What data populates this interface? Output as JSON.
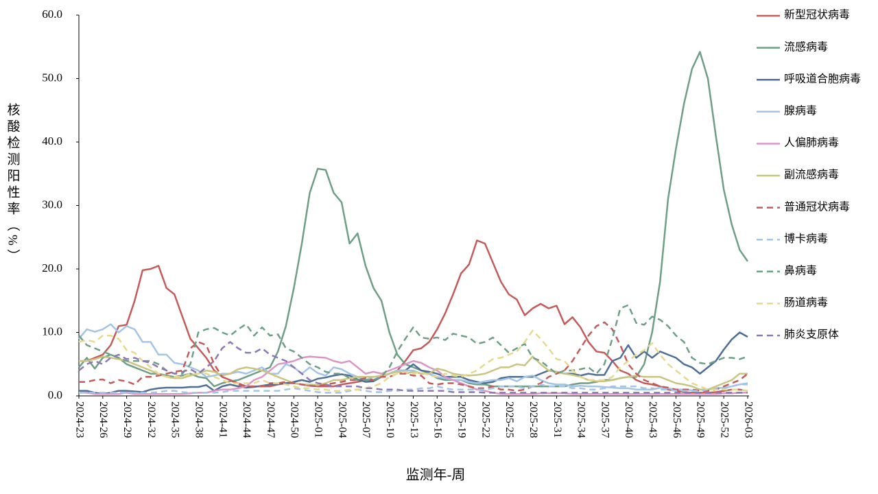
{
  "chart_data": {
    "type": "line",
    "x_label": "监测年-周",
    "y_label": "核酸检测阳性率（%）",
    "categories": [
      "2024-23",
      null,
      null,
      "2024-26",
      null,
      null,
      "2024-29",
      null,
      null,
      "2024-32",
      null,
      null,
      "2024-35",
      null,
      null,
      "2024-38",
      null,
      null,
      "2024-41",
      null,
      null,
      "2024-44",
      null,
      null,
      "2024-47",
      null,
      null,
      "2024-50",
      null,
      null,
      "2025-01",
      null,
      null,
      "2025-04",
      null,
      null,
      "2025-07",
      null,
      null,
      "2025-10",
      null,
      null,
      "2025-13",
      null,
      null,
      "2025-16",
      null,
      null,
      "2025-19",
      null,
      null,
      "2025-22",
      null,
      null,
      "2025-25",
      null,
      null,
      "2025-28",
      null,
      null,
      "2025-31",
      null,
      null,
      "2025-34",
      null,
      null,
      "2025-37",
      null,
      null,
      "2025-40",
      null,
      null,
      "2025-43",
      null,
      null,
      "2025-46",
      null,
      null,
      "2025-49",
      null,
      null,
      "2025-52",
      null,
      null,
      "2026-03"
    ],
    "ylim": [
      0,
      60
    ],
    "yticks": [
      {
        "value": 0,
        "label": "0.0"
      },
      {
        "value": 10,
        "label": "10.0"
      },
      {
        "value": 20,
        "label": "20.0"
      },
      {
        "value": 30,
        "label": "30.0"
      },
      {
        "value": 40,
        "label": "40.0"
      },
      {
        "value": 50,
        "label": "50.0"
      },
      {
        "value": 60,
        "label": "60.0"
      }
    ],
    "legend": "right",
    "series": [
      {
        "name": "新型冠状病毒",
        "color": "#c55a5a",
        "dashed": false,
        "values": [
          5.5,
          5.5,
          6,
          6.5,
          8,
          11,
          11.2,
          15,
          19.8,
          20,
          20.5,
          17,
          16,
          12.5,
          9,
          7.5,
          6,
          4,
          3,
          2.5,
          2,
          1.5,
          1.5,
          1.5,
          1.5,
          1.8,
          2,
          2,
          1.8,
          1.6,
          1.5,
          1.5,
          1.5,
          1.8,
          2,
          2.2,
          2.5,
          2.5,
          3,
          3.5,
          4,
          5.5,
          7.2,
          7.5,
          8.5,
          10.5,
          13,
          16,
          19.3,
          20.7,
          24.5,
          24,
          21,
          18,
          16,
          15.2,
          12.7,
          13.8,
          14.5,
          13.8,
          14.2,
          11.3,
          12.4,
          10.8,
          8.5,
          7,
          6.8,
          5.5,
          4,
          3.5,
          2.5,
          2,
          1.8,
          1.5,
          1,
          0.8,
          0.6,
          0.5,
          0.5,
          0.5,
          0.6,
          0.8,
          1,
          1,
          0.8
        ]
      },
      {
        "name": "流感病毒",
        "color": "#6e9e85",
        "dashed": false,
        "values": [
          4.5,
          6,
          4.3,
          6,
          6.5,
          6,
          5,
          4.5,
          4,
          3.5,
          3.5,
          3.2,
          3,
          3.2,
          3.5,
          3,
          2.8,
          1.5,
          2,
          2.3,
          2.5,
          3,
          3.5,
          4,
          4.5,
          7,
          11,
          17,
          24,
          32,
          35.8,
          35.6,
          32,
          30.5,
          24,
          25.6,
          20.5,
          17,
          15,
          10,
          6.5,
          5,
          4.5,
          4,
          3.5,
          2.8,
          2.5,
          2.5,
          2.5,
          2,
          1.8,
          1.8,
          1.5,
          1.5,
          1.5,
          1.5,
          1.5,
          1.5,
          1.5,
          1.5,
          1.5,
          1.5,
          1.8,
          2,
          2,
          2.2,
          2.5,
          2.5,
          2.8,
          3,
          3,
          5,
          10,
          18,
          31,
          39,
          46,
          51.5,
          54.2,
          50,
          41,
          32.5,
          27,
          23,
          21.2
        ]
      },
      {
        "name": "呼吸道合胞病毒",
        "color": "#4e6e95",
        "dashed": false,
        "values": [
          0.8,
          0.8,
          0.5,
          0.3,
          0.5,
          0.8,
          0.8,
          0.7,
          0.6,
          1,
          1.2,
          1.3,
          1.3,
          1.3,
          1.4,
          1.4,
          1.7,
          0.8,
          1.5,
          1.8,
          1.5,
          1.3,
          1.4,
          1.6,
          1.8,
          1.9,
          2,
          2.2,
          2.5,
          2.2,
          2.7,
          2.9,
          3.2,
          3.4,
          3.2,
          2.6,
          2.2,
          2.3,
          3,
          3.5,
          4,
          4,
          5,
          4,
          3.8,
          3.5,
          3,
          3,
          3,
          2.5,
          2.2,
          2,
          2.2,
          2.8,
          3,
          3,
          3,
          3,
          3.5,
          4,
          3.8,
          3.5,
          3.5,
          3.2,
          3.5,
          3.3,
          3.3,
          5.5,
          6,
          8,
          6,
          7,
          6,
          7,
          6.5,
          6,
          5,
          4.5,
          3.5,
          4.5,
          5.5,
          7.3,
          8.9,
          10,
          9.3
        ]
      },
      {
        "name": "腺病毒",
        "color": "#a3c4e4",
        "dashed": false,
        "values": [
          9,
          10.5,
          10.1,
          10.5,
          11.3,
          10,
          11,
          10.5,
          8.5,
          8.5,
          6.5,
          6.5,
          5.2,
          5,
          4.5,
          4,
          3,
          3.2,
          3.5,
          3.5,
          3.8,
          3.5,
          4,
          4.5,
          3.5,
          3.5,
          5,
          4.5,
          3.5,
          4.5,
          3.6,
          3.2,
          4.5,
          4.2,
          3.5,
          3,
          2.5,
          3,
          3,
          3.5,
          4,
          4,
          4,
          3.5,
          3.5,
          3,
          2.8,
          2.5,
          2.5,
          2.2,
          2,
          2.3,
          2.5,
          2.5,
          2.8,
          2.3,
          3,
          3.2,
          2.5,
          2,
          1.8,
          1.8,
          1.5,
          1.6,
          1.5,
          1.5,
          1.4,
          1.3,
          1.2,
          1.2,
          1,
          1,
          1,
          1.3,
          1.2,
          1,
          1,
          0.9,
          1,
          1,
          1.2,
          1.3,
          1.5,
          1.8,
          2
        ]
      },
      {
        "name": "人偏肺病毒",
        "color": "#dc96c6",
        "dashed": false,
        "values": [
          0.5,
          0.5,
          0.3,
          0.3,
          0.3,
          0.3,
          0.5,
          0.3,
          0.3,
          0.3,
          0.3,
          0.3,
          0.3,
          0.3,
          0.4,
          0.5,
          0.5,
          0.8,
          1,
          1,
          1.2,
          1.5,
          2.5,
          3,
          4,
          5,
          5.2,
          5.5,
          6,
          6.2,
          6.1,
          6,
          5.5,
          5.2,
          5.5,
          4.5,
          3.5,
          3.8,
          3.5,
          4,
          4.5,
          5,
          5.5,
          5.2,
          4.5,
          4,
          3,
          2.5,
          2,
          1.5,
          1,
          0.8,
          0.5,
          0.3,
          0.3,
          0.3,
          0.3,
          0.3,
          0.4,
          0.4,
          0.4,
          0.4,
          0.3,
          0.3,
          0.3,
          0.3,
          0.3,
          0.3,
          0.3,
          0.3,
          0.3,
          0.3,
          0.3,
          0.3,
          0.3,
          0.3,
          0.3,
          0.3,
          0.3,
          0.3,
          0.3,
          0.4,
          0.4,
          0.5,
          0.5
        ]
      },
      {
        "name": "副流感病毒",
        "color": "#c9c47f",
        "dashed": false,
        "values": [
          5.5,
          5.5,
          5.8,
          6.2,
          6,
          5.8,
          5.5,
          5,
          4.5,
          4,
          3.5,
          3,
          2.8,
          2.8,
          3.2,
          3.5,
          4,
          3.8,
          3.2,
          3.5,
          4.2,
          4.5,
          4.3,
          4,
          3.5,
          3,
          2.5,
          2,
          1.8,
          1.8,
          1.7,
          2,
          2.5,
          2.5,
          2.8,
          3,
          3,
          3,
          3.2,
          3.5,
          3.8,
          3.5,
          3.8,
          3.5,
          3.5,
          4.3,
          4,
          3.5,
          3.3,
          3.2,
          3.3,
          3.5,
          4,
          4.5,
          4.5,
          5,
          4.8,
          6.2,
          5,
          4,
          3.8,
          3.5,
          3.3,
          3,
          2.5,
          2.3,
          2.3,
          2.5,
          2.8,
          3,
          3.2,
          3,
          3,
          3,
          2.5,
          2,
          1.8,
          1.5,
          1,
          1,
          1.5,
          2,
          2.5,
          3.5,
          3.5
        ]
      },
      {
        "name": "普通冠状病毒",
        "color": "#c55a5a",
        "dashed": true,
        "values": [
          2.2,
          2.2,
          2.5,
          2.6,
          2,
          2.5,
          2.3,
          1.8,
          3,
          3,
          3.2,
          3.5,
          3.8,
          4,
          7.5,
          8.5,
          8,
          5,
          3,
          2.5,
          1.8,
          1.5,
          1.5,
          1.5,
          2,
          2,
          2.2,
          2,
          1.8,
          1.6,
          1.5,
          1.8,
          2,
          2.2,
          2.5,
          2.5,
          2.8,
          2.5,
          3,
          3,
          3.5,
          3.5,
          3.2,
          3.2,
          2,
          1.8,
          2,
          2,
          1.8,
          1.5,
          1.2,
          1.2,
          1.5,
          1,
          1,
          0.8,
          1,
          1.5,
          2,
          3,
          3.5,
          4,
          5.5,
          7.5,
          9.5,
          11,
          11.6,
          10.5,
          8,
          5,
          3.5,
          2.5,
          2,
          1.5,
          1.3,
          1,
          1,
          1,
          0.8,
          0.8,
          1,
          1.5,
          2,
          2.5,
          3.5
        ]
      },
      {
        "name": "博卡病毒",
        "color": "#a3c4e4",
        "dashed": true,
        "values": [
          0.5,
          0.5,
          0.5,
          0.5,
          0.5,
          0.5,
          0.5,
          0.5,
          0.5,
          0.5,
          0.6,
          0.8,
          0.8,
          0.6,
          0.5,
          0.5,
          0.5,
          0.5,
          0.6,
          0.8,
          0.8,
          0.8,
          0.8,
          0.8,
          0.8,
          0.8,
          1,
          1.2,
          1,
          0.8,
          0.6,
          0.5,
          0.5,
          0.5,
          0.8,
          1,
          0.8,
          0.6,
          0.6,
          0.8,
          0.8,
          1,
          1,
          1.2,
          1.2,
          1.5,
          1.2,
          1,
          1,
          1,
          1,
          1,
          1.2,
          1.5,
          1.5,
          1.5,
          1.2,
          1.5,
          1.8,
          1.5,
          1.5,
          1.5,
          1.2,
          1.2,
          1,
          1,
          1.2,
          1.5,
          1.5,
          1.5,
          1.5,
          1.2,
          1.2,
          1,
          1,
          0.8,
          0.8,
          0.8,
          0.8,
          1,
          1,
          1.2,
          1.5,
          1.8,
          1.8
        ]
      },
      {
        "name": "鼻病毒",
        "color": "#6e9e85",
        "dashed": true,
        "values": [
          9.5,
          8,
          7.5,
          7,
          6.5,
          6,
          5.5,
          5.5,
          5.5,
          5.5,
          5,
          4,
          3.5,
          3.5,
          5,
          10,
          10.5,
          10.7,
          10,
          9.5,
          10.5,
          11.3,
          9.5,
          10.8,
          9.5,
          9.7,
          7.5,
          7,
          6,
          5,
          4.5,
          3.8,
          3.5,
          3.5,
          2.8,
          2.5,
          2.5,
          2.5,
          3,
          4.5,
          7,
          9,
          10.8,
          9.2,
          9,
          9.2,
          8.8,
          9.8,
          9.5,
          9.2,
          8.2,
          8.5,
          9.2,
          8,
          6.8,
          7.5,
          8.2,
          6,
          5.5,
          4.5,
          3.5,
          4,
          4,
          4.2,
          4.5,
          3.5,
          5,
          9,
          13.8,
          14.3,
          11.5,
          11.2,
          12.5,
          12,
          11,
          9.5,
          8.5,
          6,
          5.2,
          5,
          5.5,
          6,
          6,
          5.8,
          6.2
        ]
      },
      {
        "name": "肠道病毒",
        "color": "#e5d98e",
        "dashed": true,
        "values": [
          8.5,
          8.8,
          8.5,
          9.5,
          9.5,
          9,
          7.2,
          6.8,
          5.5,
          4.5,
          3.5,
          3,
          3,
          3,
          3.5,
          3.5,
          3.5,
          3,
          2.5,
          2,
          2,
          2,
          2,
          2.5,
          2,
          2,
          1.8,
          1.5,
          1.2,
          1.2,
          1,
          1,
          0.8,
          0.8,
          1,
          1,
          1.2,
          1.5,
          2,
          3,
          3.5,
          3.8,
          3.5,
          3.8,
          3.2,
          3,
          3.5,
          3.2,
          3,
          3.5,
          4,
          5,
          5.8,
          6,
          6.5,
          7,
          8.5,
          10.3,
          9,
          7.5,
          5.8,
          5.5,
          4,
          3,
          2.5,
          2.5,
          2.5,
          3,
          4.5,
          5.5,
          6.5,
          7.2,
          8.3,
          6.5,
          5,
          4,
          3,
          2,
          1.5,
          1,
          1,
          1,
          1,
          1,
          0.8
        ]
      },
      {
        "name": "肺炎支原体",
        "color": "#8b78b5",
        "dashed": true,
        "values": [
          4,
          5,
          5.5,
          5,
          6,
          6.5,
          5.8,
          6,
          5.5,
          5.2,
          4.5,
          4,
          3.5,
          3.8,
          4.2,
          3.5,
          4.5,
          5.5,
          7.5,
          8.5,
          7.5,
          6.8,
          6.8,
          7.5,
          6.5,
          6,
          5.5,
          4.5,
          3.5,
          2.5,
          2,
          1.8,
          1.5,
          1.5,
          1.5,
          1.5,
          1.2,
          1.2,
          1,
          1,
          1,
          0.8,
          0.8,
          0.8,
          0.8,
          0.8,
          0.8,
          0.6,
          0.6,
          0.6,
          0.6,
          0.5,
          0.5,
          0.5,
          0.5,
          0.5,
          0.5,
          0.5,
          0.5,
          0.5,
          0.5,
          0.5,
          0.5,
          0.5,
          0.5,
          0.5,
          0.5,
          0.5,
          0.5,
          0.5,
          0.5,
          0.5,
          0.5,
          0.5,
          0.5,
          0.5,
          0.5,
          0.5,
          0.5,
          0.5,
          0.5,
          0.5,
          0.5,
          0.5,
          0.5
        ]
      }
    ]
  }
}
